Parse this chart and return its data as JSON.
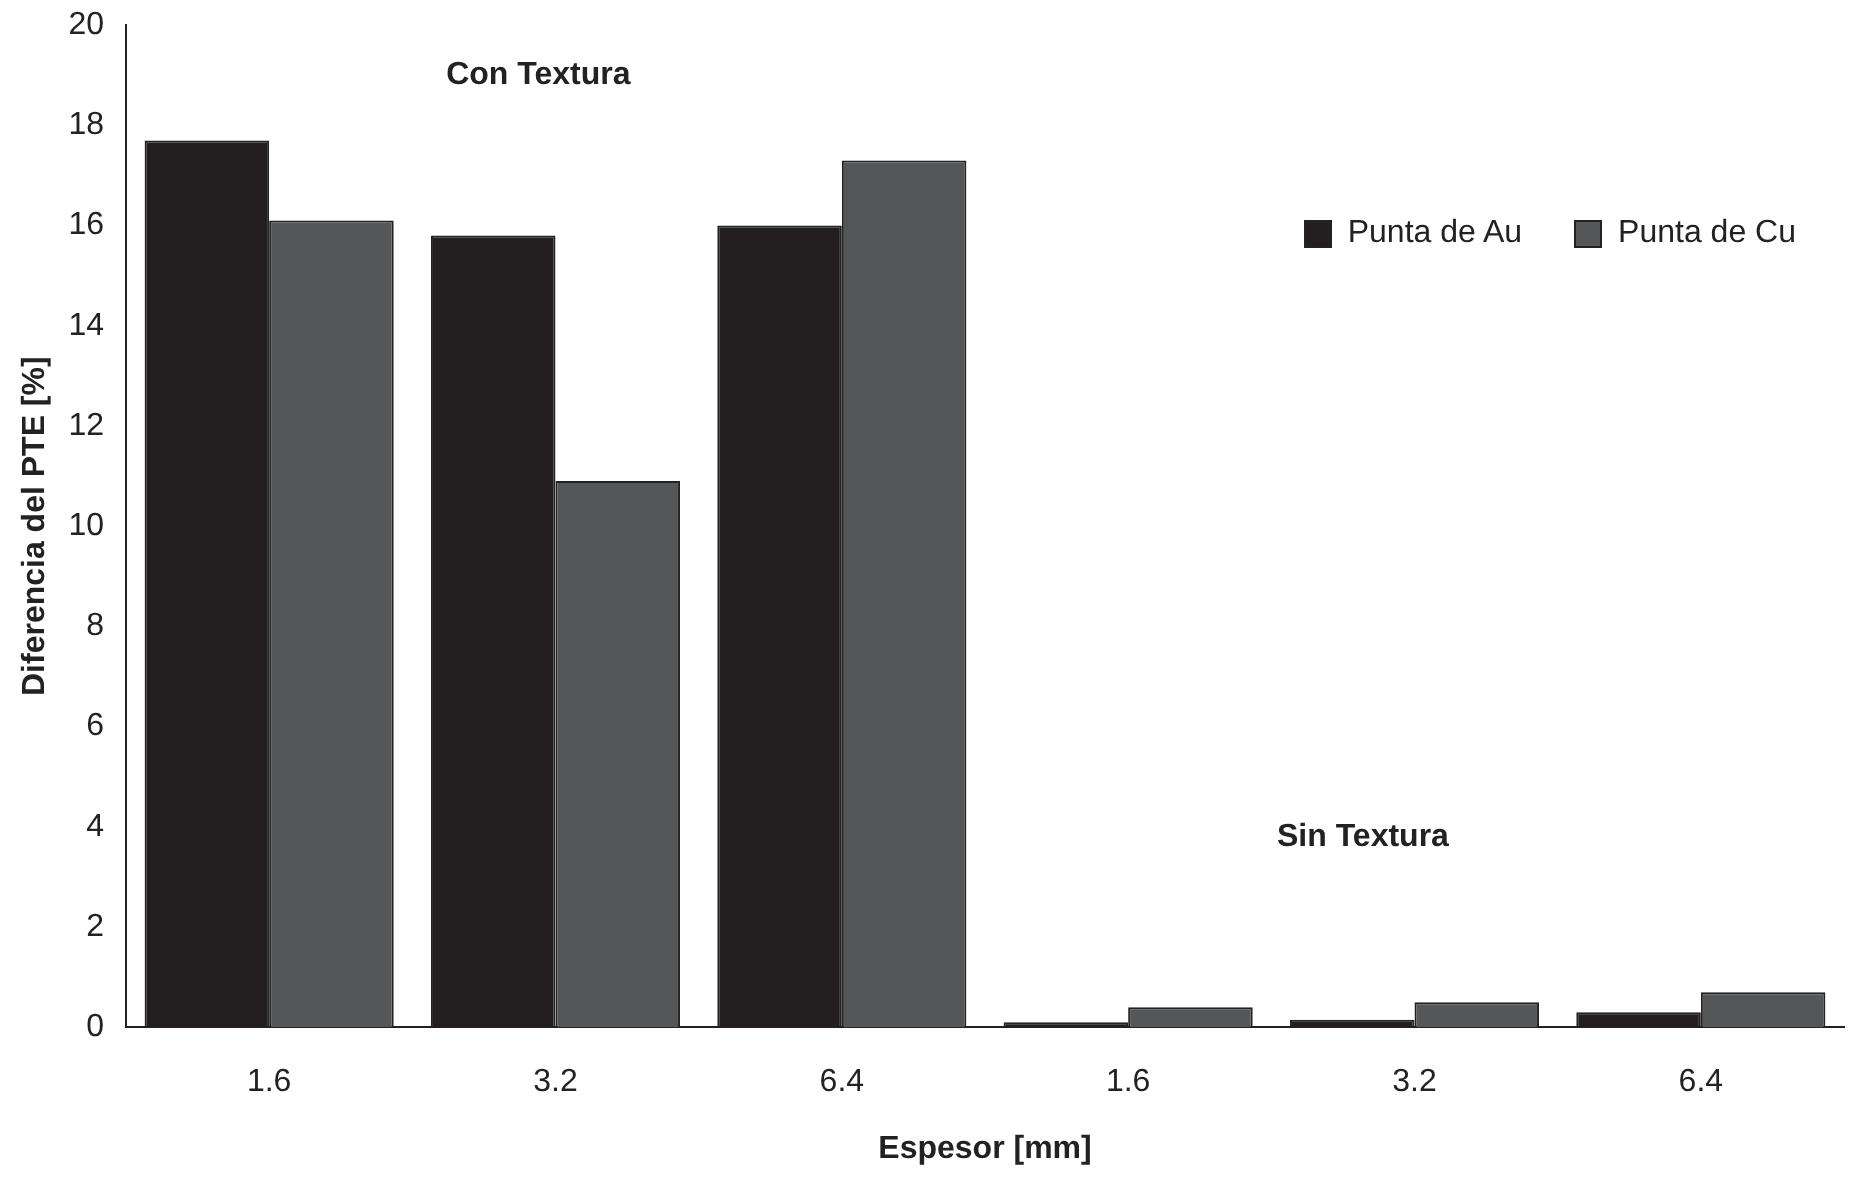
{
  "chart_data": {
    "type": "bar",
    "xlabel": "Espesor [mm]",
    "ylabel": "Diferencia del PTE [%]",
    "categories": [
      "1.6",
      "3.2",
      "6.4",
      "1.6",
      "3.2",
      "6.4"
    ],
    "series": [
      {
        "name": "Punta de Au",
        "color": "#231f20",
        "values": [
          17.7,
          15.8,
          16.0,
          0.1,
          0.15,
          0.3
        ]
      },
      {
        "name": "Punta de Cu",
        "color": "#555658",
        "values": [
          16.1,
          10.9,
          17.3,
          0.4,
          0.5,
          0.7
        ]
      }
    ],
    "ylim": [
      0,
      20
    ],
    "yticks": [
      0,
      2,
      4,
      6,
      8,
      10,
      12,
      14,
      16,
      18,
      20
    ],
    "grid": false,
    "legend": "top right",
    "annotations": [
      "Con Textura",
      "Sin Textura"
    ]
  }
}
